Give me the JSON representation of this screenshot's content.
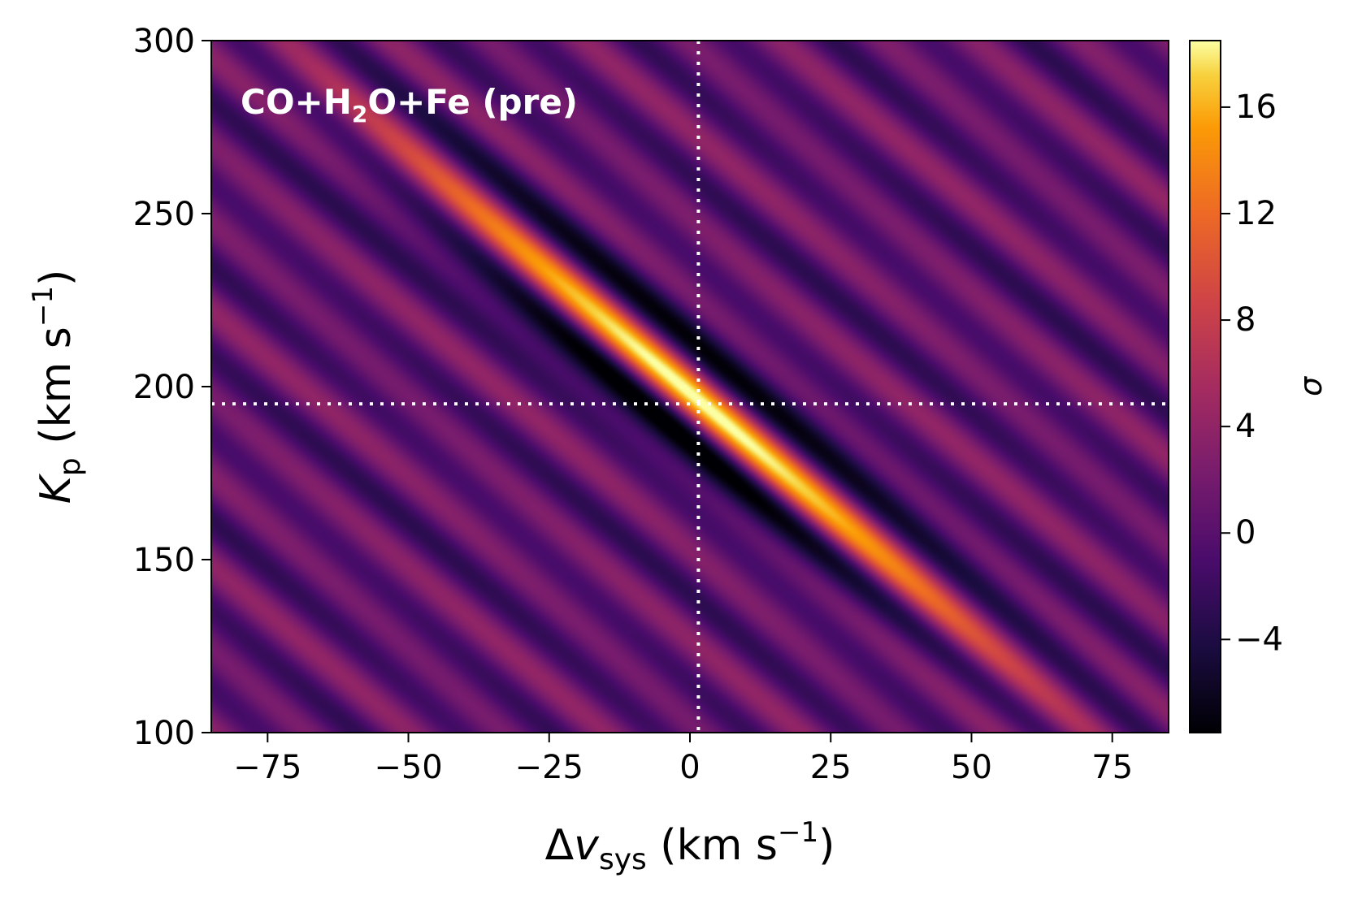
{
  "chart_data": {
    "type": "heatmap",
    "annotation": {
      "main": "CO+H",
      "sub": "2",
      "tail": "O+Fe (pre)"
    },
    "xlabel": {
      "delta": "Δ",
      "var": "v",
      "sub": "sys",
      "unit": " (km s",
      "exp": "−1",
      "close": ")"
    },
    "ylabel": {
      "var": "K",
      "sub": "p",
      "unit": " (km s",
      "exp": "−1",
      "close": ")"
    },
    "xlim": [
      -85,
      85
    ],
    "ylim": [
      100,
      300
    ],
    "x_ticks": [
      -75,
      -50,
      -25,
      0,
      25,
      50,
      75
    ],
    "x_tick_labels": [
      "−75",
      "−50",
      "−25",
      "0",
      "25",
      "50",
      "75"
    ],
    "y_ticks": [
      100,
      150,
      200,
      250,
      300
    ],
    "y_tick_labels": [
      "100",
      "150",
      "200",
      "250",
      "300"
    ],
    "colorbar": {
      "label": "σ",
      "range": [
        -7.5,
        18.5
      ],
      "ticks": [
        -4,
        0,
        4,
        8,
        12,
        16
      ],
      "tick_labels": [
        "−4",
        "0",
        "4",
        "8",
        "12",
        "16"
      ],
      "colormap": "inferno"
    },
    "peak": {
      "dv": 1.5,
      "kp": 195,
      "sigma": 18
    },
    "reference_lines": {
      "x": 1.5,
      "y": 195,
      "style": "dotted",
      "color": "#ffffff"
    },
    "grid": false
  }
}
